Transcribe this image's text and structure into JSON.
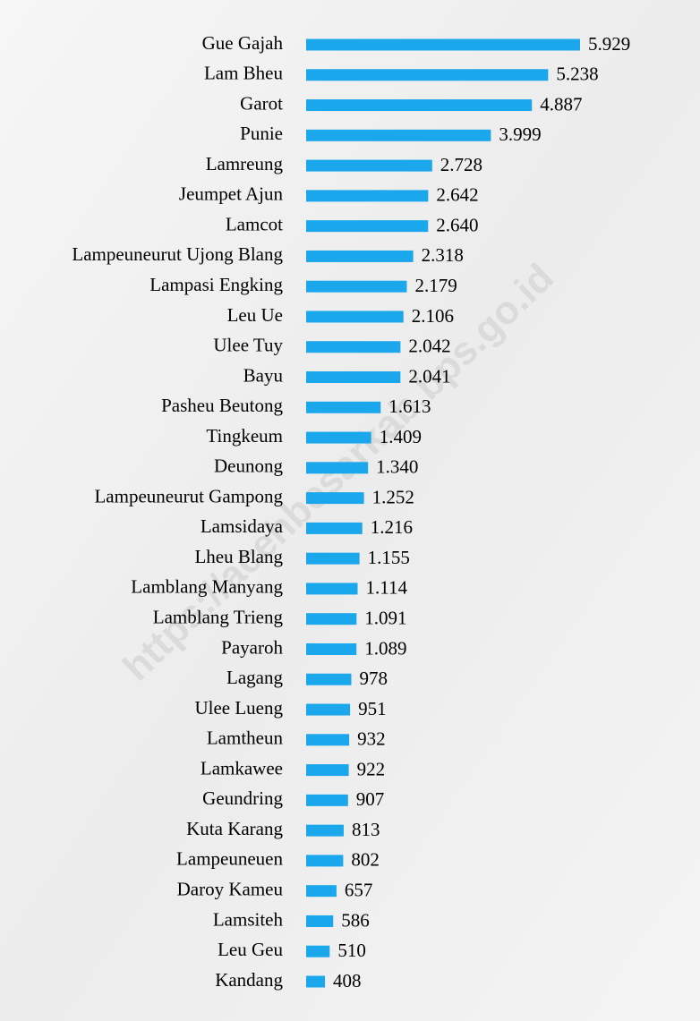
{
  "chart_data": {
    "type": "bar",
    "orientation": "horizontal",
    "color": "#1aa7ec",
    "watermark": "https://acehbesarkab.bps.go.id",
    "categories": [
      "Gue Gajah",
      "Lam Bheu",
      "Garot",
      "Punie",
      "Lamreung",
      "Jeumpet Ajun",
      "Lamcot",
      "Lampeuneurut Ujong Blang",
      "Lampasi Engking",
      "Leu Ue",
      "Ulee Tuy",
      "Bayu",
      "Pasheu Beutong",
      "Tingkeum",
      "Deunong",
      "Lampeuneurut Gampong",
      "Lamsidaya",
      "Lheu Blang",
      "Lamblang Manyang",
      "Lamblang Trieng",
      "Payaroh",
      "Lagang",
      "Ulee Lueng",
      "Lamtheun",
      "Lamkawee",
      "Geundring",
      "Kuta Karang",
      "Lampeuneuen",
      "Daroy Kameu",
      "Lamsiteh",
      "Leu Geu",
      "Kandang"
    ],
    "values": [
      5929,
      5238,
      4887,
      3999,
      2728,
      2642,
      2640,
      2318,
      2179,
      2106,
      2042,
      2041,
      1613,
      1409,
      1340,
      1252,
      1216,
      1155,
      1114,
      1091,
      1089,
      978,
      951,
      932,
      922,
      907,
      813,
      802,
      657,
      586,
      510,
      408
    ],
    "value_labels": [
      "5.929",
      "5.238",
      "4.887",
      "3.999",
      "2.728",
      "2.642",
      "2.640",
      "2.318",
      "2.179",
      "2.106",
      "2.042",
      "2.041",
      "1.613",
      "1.409",
      "1.340",
      "1.252",
      "1.216",
      "1.155",
      "1.114",
      "1.091",
      "1.089",
      "978",
      "951",
      "932",
      "922",
      "907",
      "813",
      "802",
      "657",
      "586",
      "510",
      "408"
    ]
  }
}
